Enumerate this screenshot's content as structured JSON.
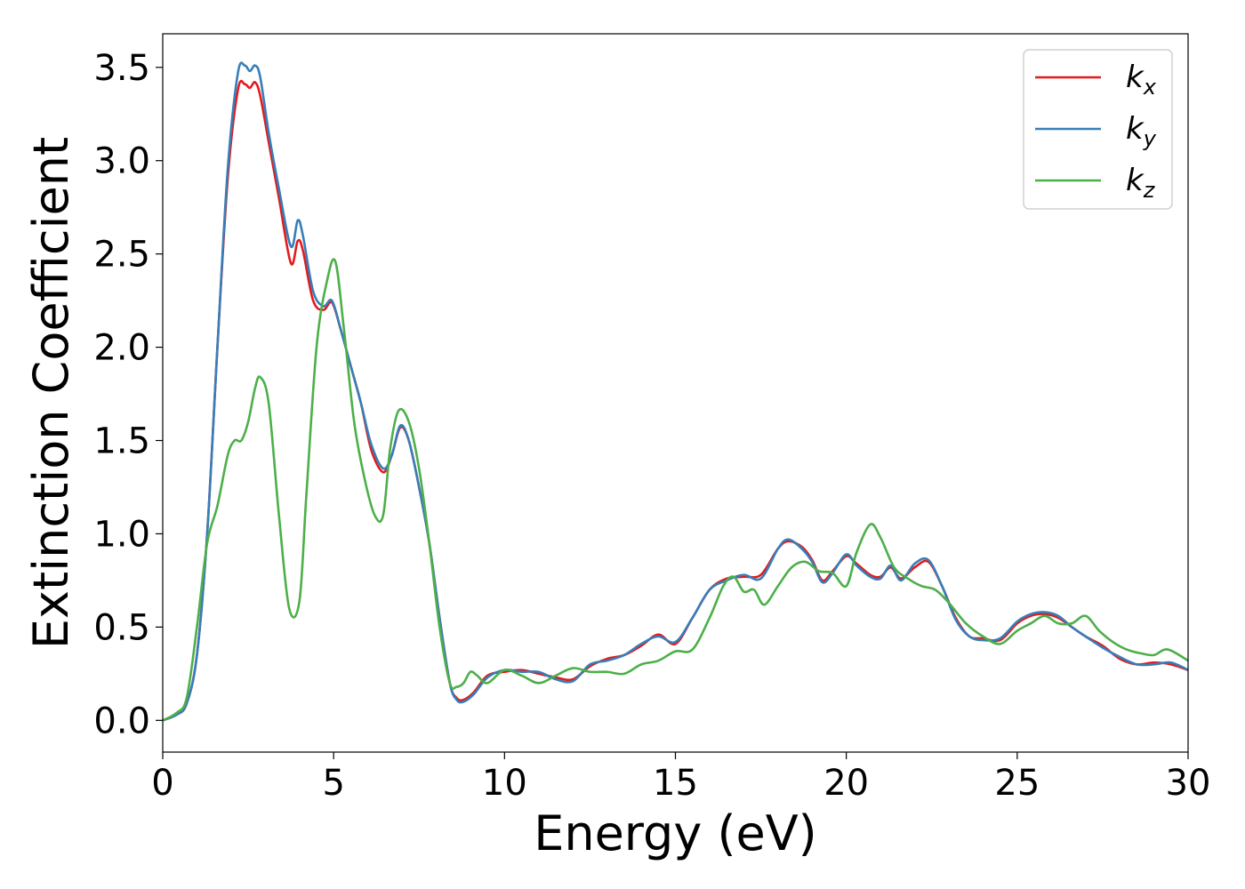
{
  "chart_data": {
    "type": "line",
    "xlabel": "Energy (eV)",
    "ylabel": "Extinction Coefficient",
    "xlim": [
      0,
      30
    ],
    "ylim": [
      -0.17,
      3.68
    ],
    "xticks": [
      "0",
      "5",
      "10",
      "15",
      "20",
      "25",
      "30"
    ],
    "yticks": [
      "0.0",
      "0.5",
      "1.0",
      "1.5",
      "2.0",
      "2.5",
      "3.0",
      "3.5"
    ],
    "grid": false,
    "legend_position": "top-right",
    "series": [
      {
        "name": "k_x",
        "label_main": "k",
        "label_sub": "x",
        "color": "#e41a1c",
        "x": [
          0,
          0.4,
          0.7,
          1.0,
          1.3,
          1.6,
          1.9,
          2.2,
          2.4,
          2.55,
          2.7,
          2.85,
          3.1,
          3.4,
          3.75,
          3.95,
          4.1,
          4.4,
          4.7,
          4.95,
          5.2,
          5.5,
          5.8,
          6.1,
          6.45,
          6.7,
          6.95,
          7.2,
          7.5,
          7.8,
          8.1,
          8.4,
          8.6,
          8.8,
          9.1,
          9.5,
          10.0,
          10.5,
          11.0,
          11.5,
          12.0,
          12.5,
          13.0,
          13.5,
          14.0,
          14.5,
          15.0,
          15.5,
          16.0,
          16.5,
          17.0,
          17.5,
          18.0,
          18.3,
          18.7,
          19.0,
          19.3,
          19.6,
          20.0,
          20.3,
          20.7,
          21.0,
          21.3,
          21.6,
          22.0,
          22.4,
          22.8,
          23.2,
          23.6,
          24.0,
          24.5,
          25.0,
          25.4,
          25.8,
          26.2,
          26.6,
          27.0,
          27.5,
          28.0,
          28.5,
          29.0,
          29.5,
          30.0
        ],
        "values": [
          0.0,
          0.03,
          0.09,
          0.35,
          1.0,
          2.0,
          2.9,
          3.38,
          3.41,
          3.39,
          3.42,
          3.35,
          3.1,
          2.8,
          2.45,
          2.57,
          2.52,
          2.25,
          2.2,
          2.24,
          2.1,
          1.9,
          1.7,
          1.45,
          1.33,
          1.42,
          1.57,
          1.5,
          1.25,
          0.95,
          0.55,
          0.2,
          0.12,
          0.11,
          0.15,
          0.24,
          0.26,
          0.27,
          0.25,
          0.23,
          0.22,
          0.29,
          0.33,
          0.35,
          0.4,
          0.46,
          0.41,
          0.55,
          0.7,
          0.76,
          0.77,
          0.78,
          0.92,
          0.96,
          0.93,
          0.86,
          0.75,
          0.8,
          0.88,
          0.84,
          0.78,
          0.77,
          0.82,
          0.76,
          0.82,
          0.85,
          0.72,
          0.55,
          0.45,
          0.44,
          0.43,
          0.52,
          0.56,
          0.57,
          0.55,
          0.5,
          0.45,
          0.4,
          0.33,
          0.3,
          0.31,
          0.3,
          0.27
        ]
      },
      {
        "name": "k_y",
        "label_main": "k",
        "label_sub": "y",
        "color": "#377eb8",
        "x": [
          0,
          0.4,
          0.7,
          1.0,
          1.3,
          1.6,
          1.9,
          2.2,
          2.4,
          2.55,
          2.7,
          2.85,
          3.1,
          3.4,
          3.75,
          3.95,
          4.1,
          4.4,
          4.7,
          4.95,
          5.2,
          5.5,
          5.8,
          6.1,
          6.45,
          6.7,
          6.95,
          7.2,
          7.5,
          7.8,
          8.1,
          8.4,
          8.6,
          8.8,
          9.1,
          9.5,
          10.0,
          10.5,
          11.0,
          11.5,
          12.0,
          12.5,
          13.0,
          13.5,
          14.0,
          14.5,
          15.0,
          15.5,
          16.0,
          16.5,
          17.0,
          17.5,
          18.0,
          18.3,
          18.7,
          19.0,
          19.3,
          19.6,
          20.0,
          20.3,
          20.7,
          21.0,
          21.3,
          21.6,
          22.0,
          22.4,
          22.8,
          23.2,
          23.6,
          24.0,
          24.5,
          25.0,
          25.4,
          25.8,
          26.2,
          26.6,
          27.0,
          27.5,
          28.0,
          28.5,
          29.0,
          29.5,
          30.0
        ],
        "values": [
          0.0,
          0.03,
          0.09,
          0.35,
          1.0,
          2.0,
          2.95,
          3.47,
          3.51,
          3.48,
          3.51,
          3.45,
          3.15,
          2.85,
          2.54,
          2.68,
          2.6,
          2.3,
          2.22,
          2.25,
          2.1,
          1.9,
          1.7,
          1.48,
          1.35,
          1.42,
          1.58,
          1.5,
          1.25,
          0.95,
          0.55,
          0.2,
          0.11,
          0.1,
          0.14,
          0.23,
          0.27,
          0.26,
          0.26,
          0.22,
          0.21,
          0.3,
          0.32,
          0.35,
          0.41,
          0.45,
          0.42,
          0.55,
          0.7,
          0.75,
          0.78,
          0.76,
          0.92,
          0.97,
          0.92,
          0.85,
          0.74,
          0.79,
          0.89,
          0.83,
          0.77,
          0.76,
          0.83,
          0.75,
          0.84,
          0.86,
          0.72,
          0.54,
          0.45,
          0.43,
          0.44,
          0.53,
          0.57,
          0.58,
          0.56,
          0.5,
          0.45,
          0.39,
          0.34,
          0.3,
          0.3,
          0.31,
          0.27
        ]
      },
      {
        "name": "k_z",
        "label_main": "k",
        "label_sub": "z",
        "color": "#4daf4a",
        "x": [
          0,
          0.4,
          0.7,
          1.0,
          1.3,
          1.6,
          1.9,
          2.1,
          2.3,
          2.5,
          2.7,
          2.85,
          3.1,
          3.4,
          3.7,
          4.0,
          4.2,
          4.5,
          4.8,
          5.05,
          5.3,
          5.6,
          5.9,
          6.2,
          6.45,
          6.65,
          6.9,
          7.2,
          7.5,
          7.8,
          8.1,
          8.4,
          8.6,
          8.8,
          9.0,
          9.2,
          9.5,
          10.0,
          10.5,
          11.0,
          11.5,
          12.0,
          12.5,
          13.0,
          13.5,
          14.0,
          14.5,
          15.0,
          15.5,
          16.0,
          16.4,
          16.7,
          17.0,
          17.3,
          17.6,
          18.0,
          18.4,
          18.8,
          19.2,
          19.6,
          20.0,
          20.3,
          20.7,
          21.0,
          21.4,
          21.8,
          22.2,
          22.6,
          23.0,
          23.5,
          24.0,
          24.5,
          25.0,
          25.4,
          25.8,
          26.2,
          26.6,
          27.0,
          27.4,
          27.8,
          28.2,
          28.6,
          29.0,
          29.4,
          30.0
        ],
        "values": [
          0.0,
          0.04,
          0.12,
          0.5,
          0.95,
          1.15,
          1.42,
          1.5,
          1.5,
          1.6,
          1.78,
          1.84,
          1.7,
          1.1,
          0.6,
          0.64,
          1.2,
          2.0,
          2.35,
          2.46,
          2.1,
          1.6,
          1.3,
          1.1,
          1.1,
          1.45,
          1.66,
          1.6,
          1.35,
          0.95,
          0.5,
          0.2,
          0.18,
          0.2,
          0.26,
          0.24,
          0.2,
          0.27,
          0.24,
          0.2,
          0.24,
          0.28,
          0.26,
          0.26,
          0.25,
          0.3,
          0.32,
          0.37,
          0.38,
          0.55,
          0.72,
          0.77,
          0.69,
          0.7,
          0.62,
          0.72,
          0.82,
          0.85,
          0.8,
          0.79,
          0.72,
          0.9,
          1.05,
          0.98,
          0.82,
          0.76,
          0.72,
          0.7,
          0.63,
          0.52,
          0.45,
          0.41,
          0.48,
          0.52,
          0.56,
          0.52,
          0.52,
          0.56,
          0.48,
          0.42,
          0.38,
          0.36,
          0.35,
          0.38,
          0.32
        ]
      }
    ]
  }
}
